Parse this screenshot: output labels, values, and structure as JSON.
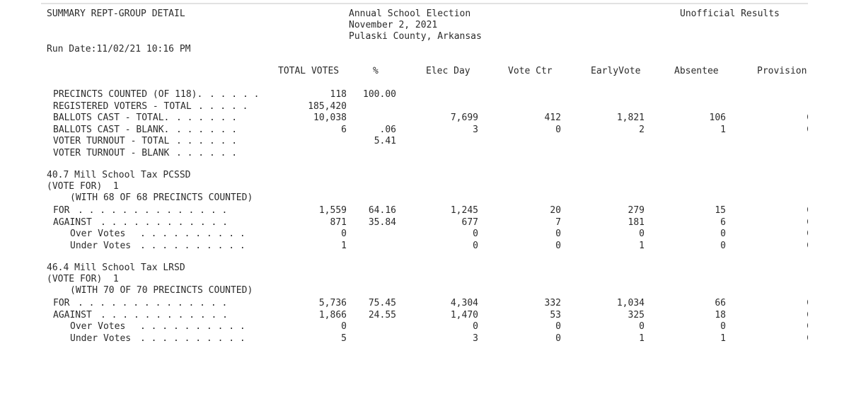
{
  "header": {
    "left_title": "SUMMARY REPT-GROUP DETAIL",
    "center_lines": [
      "Annual School Election",
      "November 2, 2021",
      "Pulaski County, Arkansas"
    ],
    "right_title": "Unofficial Results",
    "run_date": "Run Date:11/02/21 10:16 PM"
  },
  "columns": [
    "TOTAL VOTES",
    "%",
    "Elec Day",
    "Vote Ctr",
    "EarlyVote",
    "Absentee",
    "Provision"
  ],
  "summary": [
    {
      "label": "PRECINCTS COUNTED (OF 118).",
      "dots": ". . . . .",
      "total": "118",
      "pct": "100.00",
      "elec": "",
      "vctr": "",
      "early": "",
      "abs": "",
      "prov": ""
    },
    {
      "label": "REGISTERED VOTERS - TOTAL",
      "dots": ". . . . .",
      "total": "185,420",
      "pct": "",
      "elec": "",
      "vctr": "",
      "early": "",
      "abs": "",
      "prov": ""
    },
    {
      "label": "BALLOTS CAST - TOTAL.",
      "dots": ". . . . . .",
      "total": "10,038",
      "pct": "",
      "elec": "7,699",
      "vctr": "412",
      "early": "1,821",
      "abs": "106",
      "prov": "C"
    },
    {
      "label": "BALLOTS CAST - BLANK.",
      "dots": ". . . . . .",
      "total": "6",
      "pct": ".06",
      "elec": "3",
      "vctr": "0",
      "early": "2",
      "abs": "1",
      "prov": "C"
    },
    {
      "label": "VOTER TURNOUT - TOTAL",
      "dots": ". . . . . .",
      "total": "",
      "pct": "5.41",
      "elec": "",
      "vctr": "",
      "early": "",
      "abs": "",
      "prov": ""
    },
    {
      "label": "VOTER TURNOUT - BLANK",
      "dots": ". . . . . .",
      "total": "",
      "pct": "",
      "elec": "",
      "vctr": "",
      "early": "",
      "abs": "",
      "prov": ""
    }
  ],
  "races": [
    {
      "title": "40.7 Mill School Tax PCSSD",
      "vote_for": "(VOTE FOR)  1",
      "precincts": "(WITH 68 OF 68 PRECINCTS COUNTED)",
      "rows": [
        {
          "label": "FOR",
          "indent": false,
          "dots": ". . . . . . . . . . . . . .",
          "total": "1,559",
          "pct": "64.16",
          "elec": "1,245",
          "vctr": "20",
          "early": "279",
          "abs": "15",
          "prov": "C"
        },
        {
          "label": "AGAINST",
          "indent": false,
          "dots": ". . . . . . . . . . . .",
          "total": "871",
          "pct": "35.84",
          "elec": "677",
          "vctr": "7",
          "early": "181",
          "abs": "6",
          "prov": "C"
        },
        {
          "label": "Over Votes",
          "indent": true,
          "dots": ". . . . . . . . . .",
          "total": "0",
          "pct": "",
          "elec": "0",
          "vctr": "0",
          "early": "0",
          "abs": "0",
          "prov": "C"
        },
        {
          "label": "Under Votes",
          "indent": true,
          "dots": ". . . . . . . . . .",
          "total": "1",
          "pct": "",
          "elec": "0",
          "vctr": "0",
          "early": "1",
          "abs": "0",
          "prov": "C"
        }
      ]
    },
    {
      "title": "46.4 Mill School Tax LRSD",
      "vote_for": "(VOTE FOR)  1",
      "precincts": "(WITH 70 OF 70 PRECINCTS COUNTED)",
      "rows": [
        {
          "label": "FOR",
          "indent": false,
          "dots": ". . . . . . . . . . . . . .",
          "total": "5,736",
          "pct": "75.45",
          "elec": "4,304",
          "vctr": "332",
          "early": "1,034",
          "abs": "66",
          "prov": "C"
        },
        {
          "label": "AGAINST",
          "indent": false,
          "dots": ". . . . . . . . . . . .",
          "total": "1,866",
          "pct": "24.55",
          "elec": "1,470",
          "vctr": "53",
          "early": "325",
          "abs": "18",
          "prov": "C"
        },
        {
          "label": "Over Votes",
          "indent": true,
          "dots": ". . . . . . . . . .",
          "total": "0",
          "pct": "",
          "elec": "0",
          "vctr": "0",
          "early": "0",
          "abs": "0",
          "prov": "C"
        },
        {
          "label": "Under Votes",
          "indent": true,
          "dots": ". . . . . . . . . .",
          "total": "5",
          "pct": "",
          "elec": "3",
          "vctr": "0",
          "early": "1",
          "abs": "1",
          "prov": "C"
        }
      ]
    }
  ]
}
